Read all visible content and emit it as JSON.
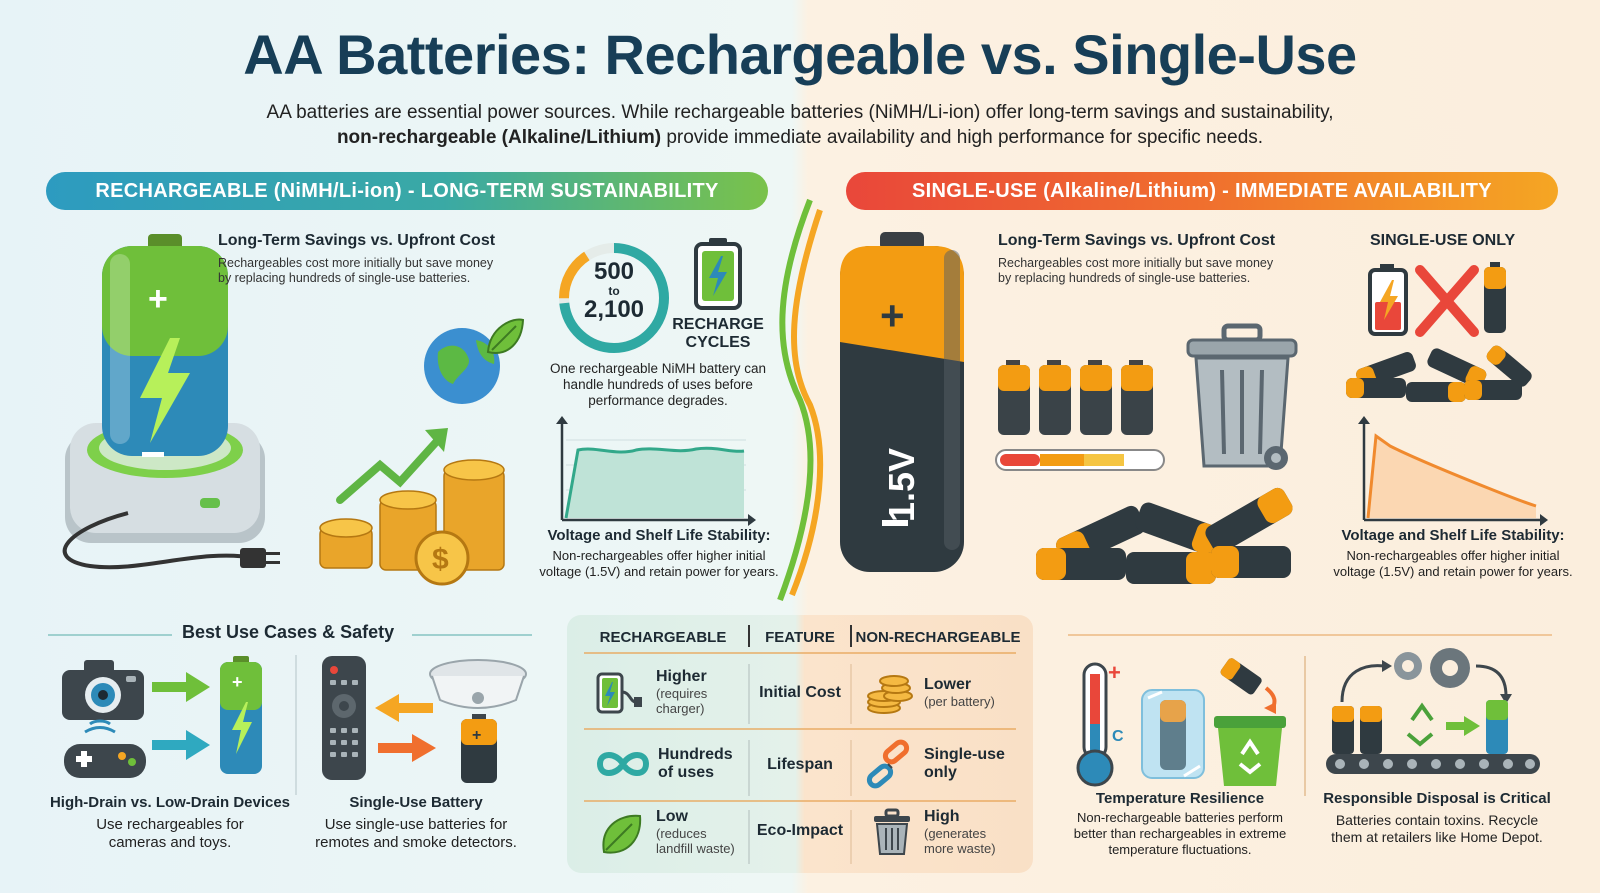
{
  "title": "AA Batteries: Rechargeable vs. Single-Use",
  "intro": {
    "line1": "AA batteries are essential power sources. While rechargeable batteries (NiMH/Li-ion) offer long-term savings and sustainability,",
    "line2_bold": "non-rechargeable (Alkaline/Lithium)",
    "line2_rest": " provide immediate availability and high performance for specific needs."
  },
  "banners": {
    "left": "RECHARGEABLE (NiMH/Li-ion) - LONG-TERM SUSTAINABILITY",
    "right": "SINGLE-USE (Alkaline/Lithium) - IMMEDIATE AVAILABILITY"
  },
  "left": {
    "savings_title": "Long-Term Savings vs. Upfront Cost",
    "savings_text1": "Rechargeables cost more initially but save money",
    "savings_text2": "by replacing hundreds of single-use batteries.",
    "cycles_top": "500",
    "cycles_mid": "to",
    "cycles_bottom": "2,100",
    "recharge_1": "RECHARGE",
    "recharge_2": "CYCLES",
    "cycles_note1": "One rechargeable NiMH battery can",
    "cycles_note2": "handle hundreds of uses before",
    "cycles_note3": "performance degrades.",
    "voltage_title": "Voltage and Shelf Life Stability:",
    "voltage_text1": "Non-rechargeables offer higher initial",
    "voltage_text2": "voltage (1.5V) and retain power for years."
  },
  "right": {
    "savings_title": "Long-Term Savings vs. Upfront Cost",
    "savings_text1": "Rechargeables cost more initially but save money",
    "savings_text2": "by replacing hundreds of single-use batteries.",
    "single_use_only": "SINGLE-USE ONLY",
    "battery_label": "1.5V",
    "voltage_title": "Voltage and Shelf Life Stability:",
    "voltage_text1": "Non-rechargeables offer higher initial",
    "voltage_text2": "voltage (1.5V) and retain power for years."
  },
  "use_cases": {
    "title": "Best Use Cases & Safety",
    "drain_title": "High-Drain vs. Low-Drain Devices",
    "drain_text1": "Use rechargeables for",
    "drain_text2": "cameras and toys.",
    "single_title": "Single-Use Battery",
    "single_text1": "Use single-use batteries for",
    "single_text2": "remotes and smoke detectors."
  },
  "table": {
    "headers": [
      "RECHARGEABLE",
      "FEATURE",
      "NON-RECHARGEABLE"
    ],
    "rows": [
      {
        "left": "Higher",
        "left_sub1": "(requires",
        "left_sub2": "charger)",
        "feature": "Initial Cost",
        "right": "Lower",
        "right_sub1": "(per battery)",
        "right_sub2": ""
      },
      {
        "left": "Hundreds",
        "left_sub1": "of uses",
        "left_sub2": "",
        "feature": "Lifespan",
        "right": "Single-use",
        "right_sub1": "only",
        "right_sub2": ""
      },
      {
        "left": "Low",
        "left_sub1": "(reduces",
        "left_sub2": "landfill waste)",
        "feature": "Eco-Impact",
        "right": "High",
        "right_sub1": "(generates",
        "right_sub2": "more waste)"
      }
    ]
  },
  "bottom_right": {
    "temp_title": "Temperature Resilience",
    "temp_text1": "Non-rechargeable batteries perform",
    "temp_text2": "better than rechargeables in extreme",
    "temp_text3": "temperature fluctuations.",
    "disposal_title": "Responsible Disposal is Critical",
    "disposal_text1": "Batteries contain toxins. Recycle",
    "disposal_text2": "them at retailers like Home Depot.",
    "thermo_plus": "+",
    "thermo_c": "C"
  },
  "colors": {
    "title": "#173e57",
    "green": "#6fbf3a",
    "teal": "#2d9bc0",
    "orange": "#f5a623",
    "red": "#e9473a",
    "dark": "#2f3a40"
  }
}
